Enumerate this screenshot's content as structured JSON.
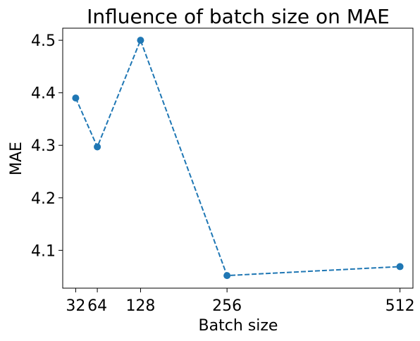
{
  "chart_data": {
    "type": "line",
    "title": "Influence of batch size on MAE",
    "xlabel": "Batch size",
    "ylabel": "MAE",
    "xlim": [
      12.8,
      531.2
    ],
    "ylim": [
      4.028,
      4.523
    ],
    "xticks": [
      32,
      64,
      128,
      256,
      512
    ],
    "xtick_labels": [
      "32",
      "64",
      "128",
      "256",
      "512"
    ],
    "yticks": [
      4.1,
      4.2,
      4.3,
      4.4,
      4.5
    ],
    "ytick_labels": [
      "4.1",
      "4.2",
      "4.3",
      "4.4",
      "4.5"
    ],
    "grid": false,
    "series": [
      {
        "x": [
          32,
          64,
          128,
          256,
          512
        ],
        "y": [
          4.39,
          4.297,
          4.5,
          4.052,
          4.069
        ],
        "color": "#1f77b4",
        "line_style": "dashed",
        "marker": "circle"
      }
    ]
  }
}
